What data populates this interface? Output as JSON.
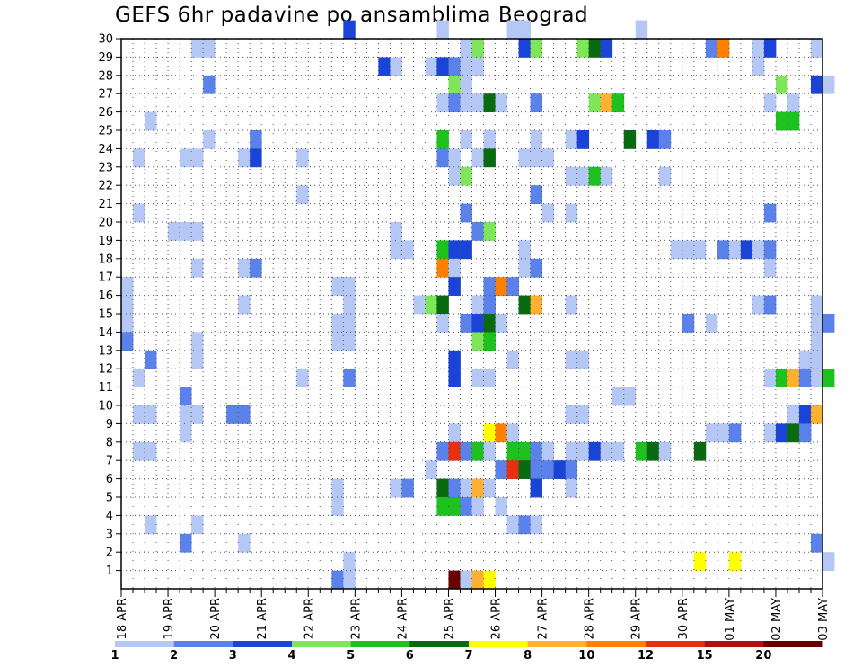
{
  "chart_data": {
    "type": "heatmap",
    "title": "GEFS 6hr padavine po ansamblima Beograd",
    "x_ticks": [
      "18 APR",
      "19 APR",
      "20 APR",
      "21 APR",
      "22 APR",
      "23 APR",
      "24 APR",
      "25 APR",
      "26 APR",
      "27 APR",
      "28 APR",
      "29 APR",
      "30 APR",
      "01 MAY",
      "02 MAY",
      "03 MAY"
    ],
    "y_ticks": [
      1,
      2,
      3,
      4,
      5,
      6,
      7,
      8,
      9,
      10,
      11,
      12,
      13,
      14,
      15,
      16,
      17,
      18,
      19,
      20,
      21,
      22,
      23,
      24,
      25,
      26,
      27,
      28,
      29,
      30
    ],
    "x_range": [
      "18 APR 00Z",
      "03 MAY 00Z"
    ],
    "y_range": [
      0,
      30
    ],
    "grid": true,
    "steps_per_day": 4,
    "legend": {
      "levels": [
        "1",
        "2",
        "3",
        "4",
        "5",
        "6",
        "7",
        "8",
        "10",
        "12",
        "15",
        "20"
      ],
      "colors": [
        "#b4c7f5",
        "#5a82ea",
        "#1a44d8",
        "#7fe65c",
        "#1ec21e",
        "#0a6a10",
        "#ffff00",
        "#ffb030",
        "#ff8000",
        "#e83010",
        "#b01010",
        "#6a0000"
      ],
      "placement": "bottom"
    },
    "cells": [
      {
        "m": 30,
        "s": 19,
        "c": 2
      },
      {
        "m": 30,
        "s": 27,
        "c": 0
      },
      {
        "m": 30,
        "s": 33,
        "c": 0
      },
      {
        "m": 30,
        "s": 34,
        "c": 0
      },
      {
        "m": 30,
        "s": 44,
        "c": 0
      },
      {
        "m": 29,
        "s": 6,
        "c": 0
      },
      {
        "m": 29,
        "s": 7,
        "c": 0
      },
      {
        "m": 29,
        "s": 29,
        "c": 0
      },
      {
        "m": 29,
        "s": 30,
        "c": 3
      },
      {
        "m": 29,
        "s": 34,
        "c": 2
      },
      {
        "m": 29,
        "s": 35,
        "c": 3
      },
      {
        "m": 29,
        "s": 39,
        "c": 3
      },
      {
        "m": 29,
        "s": 40,
        "c": 5
      },
      {
        "m": 29,
        "s": 41,
        "c": 2
      },
      {
        "m": 29,
        "s": 50,
        "c": 1
      },
      {
        "m": 29,
        "s": 51,
        "c": 8
      },
      {
        "m": 29,
        "s": 54,
        "c": 0
      },
      {
        "m": 29,
        "s": 55,
        "c": 2
      },
      {
        "m": 29,
        "s": 59,
        "c": 0
      },
      {
        "m": 28,
        "s": 22,
        "c": 2
      },
      {
        "m": 28,
        "s": 23,
        "c": 0
      },
      {
        "m": 28,
        "s": 26,
        "c": 0
      },
      {
        "m": 28,
        "s": 27,
        "c": 2
      },
      {
        "m": 28,
        "s": 28,
        "c": 1
      },
      {
        "m": 28,
        "s": 29,
        "c": 0
      },
      {
        "m": 28,
        "s": 30,
        "c": 0
      },
      {
        "m": 28,
        "s": 54,
        "c": 0
      },
      {
        "m": 27,
        "s": 7,
        "c": 1
      },
      {
        "m": 27,
        "s": 28,
        "c": 3
      },
      {
        "m": 27,
        "s": 29,
        "c": 0
      },
      {
        "m": 27,
        "s": 56,
        "c": 3
      },
      {
        "m": 27,
        "s": 59,
        "c": 2
      },
      {
        "m": 27,
        "s": 60,
        "c": 0
      },
      {
        "m": 26,
        "s": 27,
        "c": 0
      },
      {
        "m": 26,
        "s": 28,
        "c": 1
      },
      {
        "m": 26,
        "s": 29,
        "c": 0
      },
      {
        "m": 26,
        "s": 30,
        "c": 0
      },
      {
        "m": 26,
        "s": 31,
        "c": 5
      },
      {
        "m": 26,
        "s": 32,
        "c": 0
      },
      {
        "m": 26,
        "s": 35,
        "c": 1
      },
      {
        "m": 26,
        "s": 40,
        "c": 3
      },
      {
        "m": 26,
        "s": 41,
        "c": 7
      },
      {
        "m": 26,
        "s": 42,
        "c": 4
      },
      {
        "m": 26,
        "s": 55,
        "c": 0
      },
      {
        "m": 26,
        "s": 57,
        "c": 0
      },
      {
        "m": 25,
        "s": 2,
        "c": 0
      },
      {
        "m": 25,
        "s": 56,
        "c": 4
      },
      {
        "m": 25,
        "s": 57,
        "c": 4
      },
      {
        "m": 24,
        "s": 7,
        "c": 0
      },
      {
        "m": 24,
        "s": 11,
        "c": 1
      },
      {
        "m": 24,
        "s": 27,
        "c": 4
      },
      {
        "m": 24,
        "s": 29,
        "c": 0
      },
      {
        "m": 24,
        "s": 31,
        "c": 0
      },
      {
        "m": 24,
        "s": 35,
        "c": 0
      },
      {
        "m": 24,
        "s": 38,
        "c": 0
      },
      {
        "m": 24,
        "s": 39,
        "c": 2
      },
      {
        "m": 24,
        "s": 43,
        "c": 5
      },
      {
        "m": 24,
        "s": 45,
        "c": 2
      },
      {
        "m": 24,
        "s": 46,
        "c": 1
      },
      {
        "m": 23,
        "s": 1,
        "c": 0
      },
      {
        "m": 23,
        "s": 5,
        "c": 0
      },
      {
        "m": 23,
        "s": 6,
        "c": 0
      },
      {
        "m": 23,
        "s": 10,
        "c": 0
      },
      {
        "m": 23,
        "s": 11,
        "c": 2
      },
      {
        "m": 23,
        "s": 15,
        "c": 0
      },
      {
        "m": 23,
        "s": 27,
        "c": 1
      },
      {
        "m": 23,
        "s": 28,
        "c": 0
      },
      {
        "m": 23,
        "s": 30,
        "c": 0
      },
      {
        "m": 23,
        "s": 31,
        "c": 5
      },
      {
        "m": 23,
        "s": 34,
        "c": 0
      },
      {
        "m": 23,
        "s": 35,
        "c": 0
      },
      {
        "m": 23,
        "s": 36,
        "c": 0
      },
      {
        "m": 22,
        "s": 28,
        "c": 0
      },
      {
        "m": 22,
        "s": 29,
        "c": 3
      },
      {
        "m": 22,
        "s": 38,
        "c": 0
      },
      {
        "m": 22,
        "s": 39,
        "c": 0
      },
      {
        "m": 22,
        "s": 40,
        "c": 4
      },
      {
        "m": 22,
        "s": 41,
        "c": 0
      },
      {
        "m": 22,
        "s": 46,
        "c": 0
      },
      {
        "m": 21,
        "s": 15,
        "c": 0
      },
      {
        "m": 21,
        "s": 35,
        "c": 1
      },
      {
        "m": 20,
        "s": 1,
        "c": 0
      },
      {
        "m": 20,
        "s": 29,
        "c": 1
      },
      {
        "m": 20,
        "s": 36,
        "c": 0
      },
      {
        "m": 20,
        "s": 38,
        "c": 0
      },
      {
        "m": 20,
        "s": 55,
        "c": 1
      },
      {
        "m": 19,
        "s": 4,
        "c": 0
      },
      {
        "m": 19,
        "s": 5,
        "c": 0
      },
      {
        "m": 19,
        "s": 6,
        "c": 0
      },
      {
        "m": 19,
        "s": 23,
        "c": 0
      },
      {
        "m": 19,
        "s": 30,
        "c": 1
      },
      {
        "m": 19,
        "s": 31,
        "c": 3
      },
      {
        "m": 18,
        "s": 23,
        "c": 0
      },
      {
        "m": 18,
        "s": 24,
        "c": 0
      },
      {
        "m": 18,
        "s": 27,
        "c": 4
      },
      {
        "m": 18,
        "s": 28,
        "c": 2
      },
      {
        "m": 18,
        "s": 29,
        "c": 2
      },
      {
        "m": 18,
        "s": 34,
        "c": 0
      },
      {
        "m": 18,
        "s": 47,
        "c": 0
      },
      {
        "m": 18,
        "s": 48,
        "c": 0
      },
      {
        "m": 18,
        "s": 49,
        "c": 0
      },
      {
        "m": 18,
        "s": 51,
        "c": 1
      },
      {
        "m": 18,
        "s": 52,
        "c": 0
      },
      {
        "m": 18,
        "s": 53,
        "c": 2
      },
      {
        "m": 18,
        "s": 54,
        "c": 0
      },
      {
        "m": 18,
        "s": 55,
        "c": 1
      },
      {
        "m": 17,
        "s": 6,
        "c": 0
      },
      {
        "m": 17,
        "s": 10,
        "c": 0
      },
      {
        "m": 17,
        "s": 11,
        "c": 1
      },
      {
        "m": 17,
        "s": 27,
        "c": 8
      },
      {
        "m": 17,
        "s": 28,
        "c": 0
      },
      {
        "m": 17,
        "s": 34,
        "c": 0
      },
      {
        "m": 17,
        "s": 35,
        "c": 1
      },
      {
        "m": 17,
        "s": 55,
        "c": 0
      },
      {
        "m": 16,
        "s": 0,
        "c": 0
      },
      {
        "m": 16,
        "s": 18,
        "c": 0
      },
      {
        "m": 16,
        "s": 19,
        "c": 0
      },
      {
        "m": 16,
        "s": 28,
        "c": 2
      },
      {
        "m": 16,
        "s": 31,
        "c": 1
      },
      {
        "m": 16,
        "s": 32,
        "c": 8
      },
      {
        "m": 16,
        "s": 33,
        "c": 1
      },
      {
        "m": 15,
        "s": 0,
        "c": 0
      },
      {
        "m": 15,
        "s": 10,
        "c": 0
      },
      {
        "m": 15,
        "s": 19,
        "c": 0
      },
      {
        "m": 15,
        "s": 25,
        "c": 0
      },
      {
        "m": 15,
        "s": 26,
        "c": 3
      },
      {
        "m": 15,
        "s": 27,
        "c": 5
      },
      {
        "m": 15,
        "s": 30,
        "c": 0
      },
      {
        "m": 15,
        "s": 31,
        "c": 1
      },
      {
        "m": 15,
        "s": 34,
        "c": 5
      },
      {
        "m": 15,
        "s": 35,
        "c": 7
      },
      {
        "m": 15,
        "s": 38,
        "c": 0
      },
      {
        "m": 15,
        "s": 54,
        "c": 0
      },
      {
        "m": 15,
        "s": 55,
        "c": 1
      },
      {
        "m": 15,
        "s": 59,
        "c": 0
      },
      {
        "m": 14,
        "s": 0,
        "c": 0
      },
      {
        "m": 14,
        "s": 18,
        "c": 0
      },
      {
        "m": 14,
        "s": 19,
        "c": 0
      },
      {
        "m": 14,
        "s": 27,
        "c": 0
      },
      {
        "m": 14,
        "s": 29,
        "c": 1
      },
      {
        "m": 14,
        "s": 30,
        "c": 2
      },
      {
        "m": 14,
        "s": 31,
        "c": 5
      },
      {
        "m": 14,
        "s": 32,
        "c": 0
      },
      {
        "m": 14,
        "s": 48,
        "c": 1
      },
      {
        "m": 14,
        "s": 50,
        "c": 0
      },
      {
        "m": 14,
        "s": 59,
        "c": 0
      },
      {
        "m": 14,
        "s": 60,
        "c": 1
      },
      {
        "m": 13,
        "s": 0,
        "c": 1
      },
      {
        "m": 13,
        "s": 6,
        "c": 0
      },
      {
        "m": 13,
        "s": 18,
        "c": 0
      },
      {
        "m": 13,
        "s": 19,
        "c": 0
      },
      {
        "m": 13,
        "s": 30,
        "c": 3
      },
      {
        "m": 13,
        "s": 31,
        "c": 4
      },
      {
        "m": 13,
        "s": 59,
        "c": 0
      },
      {
        "m": 12,
        "s": 2,
        "c": 1
      },
      {
        "m": 12,
        "s": 6,
        "c": 0
      },
      {
        "m": 12,
        "s": 28,
        "c": 2
      },
      {
        "m": 12,
        "s": 33,
        "c": 0
      },
      {
        "m": 12,
        "s": 38,
        "c": 0
      },
      {
        "m": 12,
        "s": 39,
        "c": 0
      },
      {
        "m": 12,
        "s": 58,
        "c": 0
      },
      {
        "m": 12,
        "s": 59,
        "c": 0
      },
      {
        "m": 11,
        "s": 1,
        "c": 0
      },
      {
        "m": 11,
        "s": 15,
        "c": 0
      },
      {
        "m": 11,
        "s": 19,
        "c": 1
      },
      {
        "m": 11,
        "s": 28,
        "c": 2
      },
      {
        "m": 11,
        "s": 30,
        "c": 0
      },
      {
        "m": 11,
        "s": 31,
        "c": 0
      },
      {
        "m": 11,
        "s": 55,
        "c": 0
      },
      {
        "m": 11,
        "s": 56,
        "c": 4
      },
      {
        "m": 11,
        "s": 57,
        "c": 7
      },
      {
        "m": 11,
        "s": 58,
        "c": 1
      },
      {
        "m": 11,
        "s": 59,
        "c": 0
      },
      {
        "m": 11,
        "s": 60,
        "c": 4
      },
      {
        "m": 10,
        "s": 5,
        "c": 1
      },
      {
        "m": 10,
        "s": 42,
        "c": 0
      },
      {
        "m": 10,
        "s": 43,
        "c": 0
      },
      {
        "m": 9,
        "s": 1,
        "c": 0
      },
      {
        "m": 9,
        "s": 2,
        "c": 0
      },
      {
        "m": 9,
        "s": 5,
        "c": 0
      },
      {
        "m": 9,
        "s": 6,
        "c": 0
      },
      {
        "m": 9,
        "s": 9,
        "c": 1
      },
      {
        "m": 9,
        "s": 10,
        "c": 1
      },
      {
        "m": 9,
        "s": 38,
        "c": 0
      },
      {
        "m": 9,
        "s": 39,
        "c": 0
      },
      {
        "m": 9,
        "s": 57,
        "c": 0
      },
      {
        "m": 9,
        "s": 58,
        "c": 2
      },
      {
        "m": 9,
        "s": 59,
        "c": 7
      },
      {
        "m": 8,
        "s": 5,
        "c": 0
      },
      {
        "m": 8,
        "s": 28,
        "c": 0
      },
      {
        "m": 8,
        "s": 31,
        "c": 6
      },
      {
        "m": 8,
        "s": 32,
        "c": 8
      },
      {
        "m": 8,
        "s": 33,
        "c": 0
      },
      {
        "m": 8,
        "s": 50,
        "c": 0
      },
      {
        "m": 8,
        "s": 51,
        "c": 0
      },
      {
        "m": 8,
        "s": 52,
        "c": 1
      },
      {
        "m": 8,
        "s": 55,
        "c": 0
      },
      {
        "m": 8,
        "s": 56,
        "c": 2
      },
      {
        "m": 8,
        "s": 57,
        "c": 5
      },
      {
        "m": 8,
        "s": 58,
        "c": 1
      },
      {
        "m": 7,
        "s": 1,
        "c": 0
      },
      {
        "m": 7,
        "s": 2,
        "c": 0
      },
      {
        "m": 7,
        "s": 27,
        "c": 1
      },
      {
        "m": 7,
        "s": 28,
        "c": 9
      },
      {
        "m": 7,
        "s": 29,
        "c": 1
      },
      {
        "m": 7,
        "s": 30,
        "c": 4
      },
      {
        "m": 7,
        "s": 31,
        "c": 0
      },
      {
        "m": 7,
        "s": 33,
        "c": 4
      },
      {
        "m": 7,
        "s": 34,
        "c": 4
      },
      {
        "m": 7,
        "s": 35,
        "c": 1
      },
      {
        "m": 7,
        "s": 36,
        "c": 0
      },
      {
        "m": 7,
        "s": 38,
        "c": 0
      },
      {
        "m": 7,
        "s": 39,
        "c": 0
      },
      {
        "m": 7,
        "s": 40,
        "c": 2
      },
      {
        "m": 7,
        "s": 41,
        "c": 0
      },
      {
        "m": 7,
        "s": 42,
        "c": 0
      },
      {
        "m": 7,
        "s": 44,
        "c": 4
      },
      {
        "m": 7,
        "s": 45,
        "c": 5
      },
      {
        "m": 7,
        "s": 46,
        "c": 0
      },
      {
        "m": 7,
        "s": 49,
        "c": 5
      },
      {
        "m": 6,
        "s": 26,
        "c": 0
      },
      {
        "m": 6,
        "s": 32,
        "c": 1
      },
      {
        "m": 6,
        "s": 33,
        "c": 9
      },
      {
        "m": 6,
        "s": 34,
        "c": 5
      },
      {
        "m": 6,
        "s": 35,
        "c": 1
      },
      {
        "m": 6,
        "s": 36,
        "c": 1
      },
      {
        "m": 6,
        "s": 37,
        "c": 2
      },
      {
        "m": 6,
        "s": 38,
        "c": 1
      },
      {
        "m": 5,
        "s": 18,
        "c": 0
      },
      {
        "m": 5,
        "s": 23,
        "c": 0
      },
      {
        "m": 5,
        "s": 24,
        "c": 1
      },
      {
        "m": 5,
        "s": 27,
        "c": 5
      },
      {
        "m": 5,
        "s": 28,
        "c": 1
      },
      {
        "m": 5,
        "s": 29,
        "c": 0
      },
      {
        "m": 5,
        "s": 30,
        "c": 7
      },
      {
        "m": 5,
        "s": 31,
        "c": 0
      },
      {
        "m": 5,
        "s": 35,
        "c": 2
      },
      {
        "m": 5,
        "s": 38,
        "c": 0
      },
      {
        "m": 4,
        "s": 18,
        "c": 0
      },
      {
        "m": 4,
        "s": 27,
        "c": 4
      },
      {
        "m": 4,
        "s": 28,
        "c": 4
      },
      {
        "m": 4,
        "s": 29,
        "c": 1
      },
      {
        "m": 4,
        "s": 30,
        "c": 0
      },
      {
        "m": 4,
        "s": 32,
        "c": 0
      },
      {
        "m": 3,
        "s": 2,
        "c": 0
      },
      {
        "m": 3,
        "s": 6,
        "c": 0
      },
      {
        "m": 3,
        "s": 33,
        "c": 0
      },
      {
        "m": 3,
        "s": 34,
        "c": 1
      },
      {
        "m": 3,
        "s": 35,
        "c": 0
      },
      {
        "m": 2,
        "s": 5,
        "c": 1
      },
      {
        "m": 2,
        "s": 10,
        "c": 0
      },
      {
        "m": 2,
        "s": 59,
        "c": 1
      },
      {
        "m": 1,
        "s": 19,
        "c": 0
      },
      {
        "m": 1,
        "s": 49,
        "c": 6
      },
      {
        "m": 1,
        "s": 52,
        "c": 6
      },
      {
        "m": 1,
        "s": 60,
        "c": 0
      },
      {
        "m": 0,
        "s": 18,
        "c": 1
      },
      {
        "m": 0,
        "s": 19,
        "c": 0
      },
      {
        "m": 0,
        "s": 28,
        "c": 11
      },
      {
        "m": 0,
        "s": 29,
        "c": 0
      },
      {
        "m": 0,
        "s": 30,
        "c": 7
      },
      {
        "m": 0,
        "s": 31,
        "c": 6
      }
    ]
  }
}
